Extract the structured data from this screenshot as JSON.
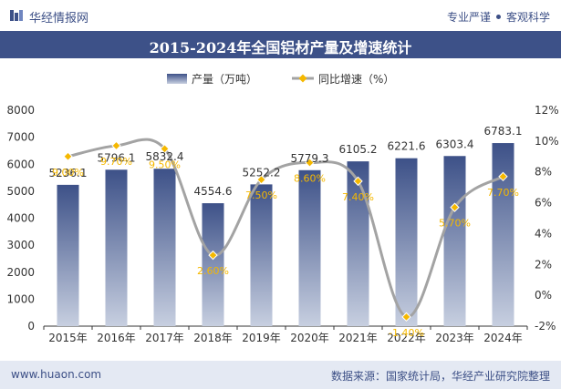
{
  "header": {
    "brand": "华经情报网",
    "tagline_left": "专业严谨",
    "tagline_right": "客观科学"
  },
  "chart_data": {
    "type": "bar",
    "title": "2015-2024年全国铝材产量及增速统计",
    "categories": [
      "2015年",
      "2016年",
      "2017年",
      "2018年",
      "2019年",
      "2020年",
      "2021年",
      "2022年",
      "2023年",
      "2024年"
    ],
    "series": [
      {
        "name": "产量（万吨）",
        "type": "bar",
        "axis": "left",
        "values": [
          5236.1,
          5796.1,
          5832.4,
          4554.6,
          5252.2,
          5779.3,
          6105.2,
          6221.6,
          6303.4,
          6783.1
        ],
        "labels": [
          "5236.1",
          "5796.1",
          "5832.4",
          "4554.6",
          "5252.2",
          "5779.3",
          "6105.2",
          "6221.6",
          "6303.4",
          "6783.1"
        ]
      },
      {
        "name": "同比增速（%）",
        "type": "line",
        "axis": "right",
        "values": [
          9.0,
          9.7,
          9.5,
          2.6,
          7.5,
          8.6,
          7.4,
          -1.4,
          5.7,
          7.7
        ],
        "labels": [
          "9.00%",
          "9.70%",
          "9.50%",
          "2.60%",
          "7.50%",
          "8.60%",
          "7.40%",
          "-1.40%",
          "5.70%",
          "7.70%"
        ]
      }
    ],
    "y_left": {
      "min": 0,
      "max": 8000,
      "step": 1000,
      "ticks": [
        "0",
        "1000",
        "2000",
        "3000",
        "4000",
        "5000",
        "6000",
        "7000",
        "8000"
      ]
    },
    "y_right": {
      "min": -2,
      "max": 12,
      "step": 2,
      "ticks": [
        "-2%",
        "0%",
        "2%",
        "4%",
        "6%",
        "8%",
        "10%",
        "12%"
      ]
    },
    "legend_position": "top-center",
    "grid": false,
    "colors": {
      "bar_top": "#3d5188",
      "bar_bottom": "#c7cfe0",
      "line": "#a3a3a3",
      "marker": "#f5b800",
      "line_label": "#f5b800",
      "text": "#333333"
    }
  },
  "footer": {
    "site": "www.huaon.com",
    "source": "数据来源：国家统计局，华经产业研究院整理"
  }
}
